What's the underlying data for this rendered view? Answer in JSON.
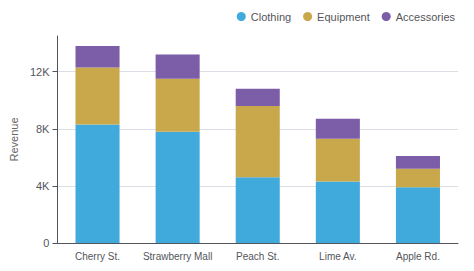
{
  "chart_data": {
    "type": "bar",
    "stacked": true,
    "categories": [
      "Cherry St.",
      "Strawberry Mall",
      "Peach St.",
      "Lime Av.",
      "Apple Rd."
    ],
    "series": [
      {
        "name": "Clothing",
        "color": "#41aadc",
        "values": [
          8300,
          7800,
          4600,
          4300,
          3900
        ]
      },
      {
        "name": "Equipment",
        "color": "#c8a84b",
        "values": [
          4000,
          3700,
          5000,
          3000,
          1300
        ]
      },
      {
        "name": "Accessories",
        "color": "#7b5ea7",
        "values": [
          1500,
          1700,
          1200,
          1400,
          900
        ]
      }
    ],
    "ylabel": "Revenue",
    "ylim": [
      0,
      14500
    ],
    "yticks": [
      0,
      {
        "value": 4000,
        "label": "4K"
      },
      {
        "value": 8000,
        "label": "8K"
      },
      {
        "value": 12000,
        "label": "12K"
      }
    ],
    "grid": true,
    "legend": "upper right"
  }
}
